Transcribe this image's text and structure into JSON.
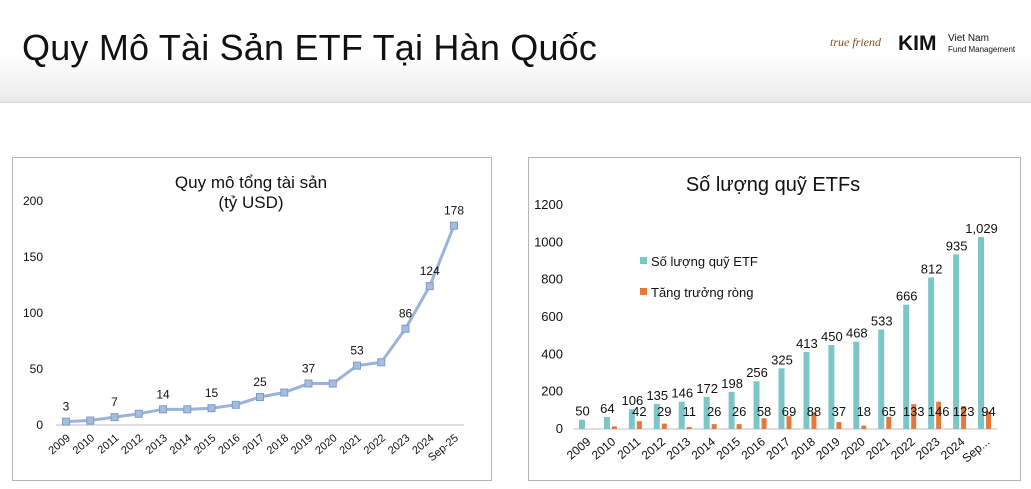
{
  "page": {
    "title": "Quy Mô Tài Sản ETF Tại Hàn Quốc",
    "logo": {
      "brand1": "true friend",
      "brand2": "KIM",
      "line1": "Viet Nam",
      "line2": "Fund Management"
    }
  },
  "colors": {
    "line": "#9ab3d9",
    "marker": "#a6bde0",
    "teal": "#7cc6c7",
    "orange": "#e8783a",
    "text": "#111111",
    "axis": "#bfbfbf"
  },
  "chart_data": [
    {
      "type": "line",
      "title": "Quy mô tổng tài sản\n(tỷ USD)",
      "categories": [
        "2009",
        "2010",
        "2011",
        "2012",
        "2013",
        "2014",
        "2015",
        "2016",
        "2017",
        "2018",
        "2019",
        "2020",
        "2021",
        "2022",
        "2023",
        "2024",
        "Sep-25"
      ],
      "values": [
        3,
        4,
        7,
        10,
        14,
        14,
        15,
        18,
        25,
        29,
        37,
        37,
        53,
        56,
        86,
        124,
        178
      ],
      "data_labels": {
        "0": "3",
        "2": "7",
        "4": "14",
        "6": "15",
        "8": "25",
        "10": "37",
        "12": "53",
        "14": "86",
        "15": "124",
        "16": "178"
      },
      "ylim": [
        0,
        200
      ],
      "yticks": [
        "0",
        "50",
        "100",
        "150",
        "200"
      ],
      "grid": false
    },
    {
      "type": "bar",
      "title": "Số lượng quỹ ETFs",
      "categories": [
        "2009",
        "2010",
        "2011",
        "2012",
        "2013",
        "2014",
        "2015",
        "2016",
        "2017",
        "2018",
        "2019",
        "2020",
        "2021",
        "2022",
        "2023",
        "2024",
        "Sep..."
      ],
      "series": [
        {
          "name": "Số lượng quỹ ETF",
          "values": [
            50,
            64,
            106,
            135,
            146,
            172,
            198,
            256,
            325,
            413,
            450,
            468,
            533,
            666,
            812,
            935,
            1029
          ],
          "labels": [
            "50",
            "64",
            "106",
            "135",
            "146",
            "172",
            "198",
            "256",
            "325",
            "413",
            "450",
            "468",
            "533",
            "666",
            "812",
            "935",
            "1,029"
          ]
        },
        {
          "name": "Tăng trưởng ròng",
          "values": [
            null,
            14,
            42,
            29,
            11,
            26,
            26,
            58,
            69,
            88,
            37,
            18,
            65,
            133,
            146,
            123,
            94
          ],
          "labels": [
            "",
            "",
            "42",
            "29",
            "11",
            "26",
            "26",
            "58",
            "69",
            "88",
            "37",
            "18",
            "65",
            "133",
            "146",
            "123",
            "94"
          ]
        }
      ],
      "ylim": [
        0,
        1200
      ],
      "yticks": [
        "0",
        "200",
        "400",
        "600",
        "800",
        "1000",
        "1200"
      ],
      "legend": "top-left",
      "grid": false
    }
  ]
}
